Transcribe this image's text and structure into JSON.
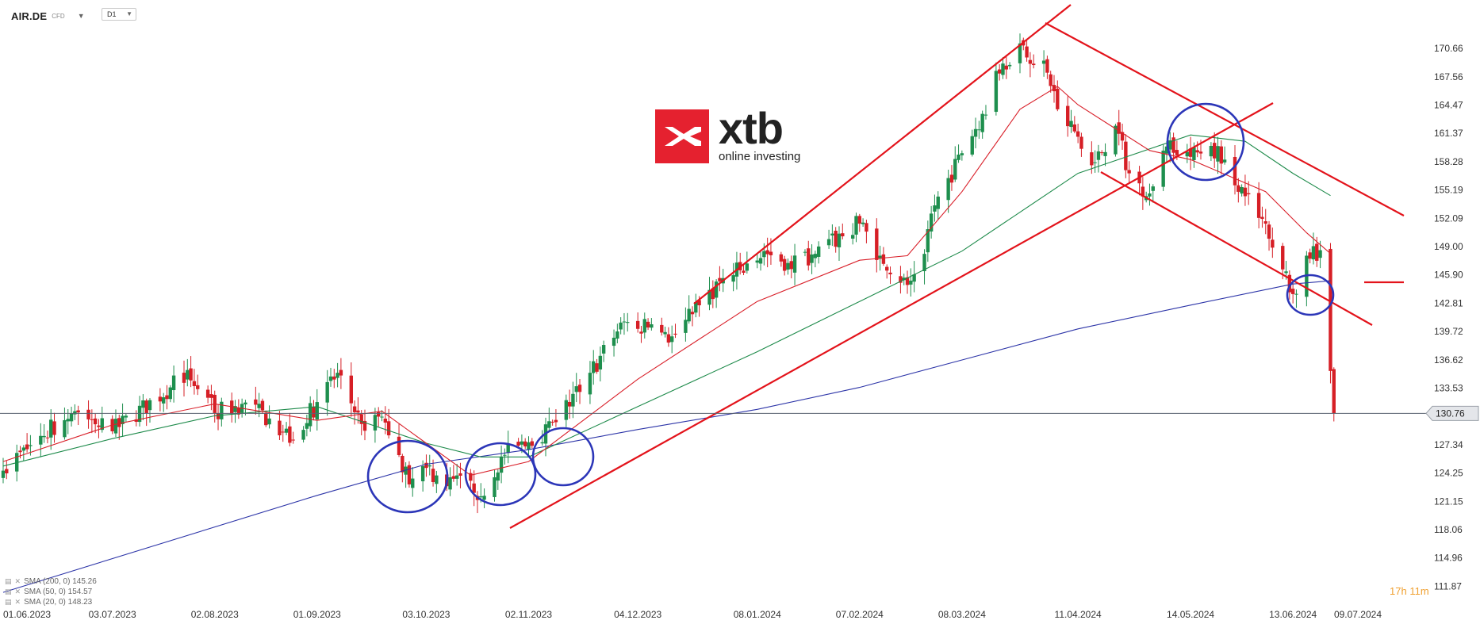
{
  "header": {
    "symbol": "AIR.DE",
    "symbol_type": "CFD",
    "timeframe": "D1"
  },
  "logo": {
    "brand": "xtb",
    "tagline": "online investing"
  },
  "indicators": [
    {
      "label": "SMA (200, 0) 145.26",
      "color": "#2d35a8"
    },
    {
      "label": "SMA (50, 0) 154.57",
      "color": "#1d8a4a"
    },
    {
      "label": "SMA (20, 0) 148.23",
      "color": "#d9202a"
    }
  ],
  "countdown": {
    "hours": "17",
    "h": "h",
    "minutes": "11",
    "m": "m"
  },
  "colors": {
    "up": "#1e8f4e",
    "down": "#d61f26",
    "sma200": "#2d35a8",
    "sma50": "#1d8a4a",
    "sma20": "#d9202a",
    "drawing_lines": "#e3131b",
    "drawing_circles": "#2c36b8",
    "price_line": "#5a6270"
  },
  "chart_data": {
    "type": "candlestick",
    "title": "",
    "xlabel": "",
    "ylabel": "",
    "ylim": [
      110.6,
      173.0
    ],
    "grid": false,
    "y_ticks": [
      170.66,
      167.56,
      164.47,
      161.37,
      158.28,
      155.19,
      152.09,
      149.0,
      145.9,
      142.81,
      139.72,
      136.62,
      133.53,
      130.76,
      127.34,
      124.25,
      121.15,
      118.06,
      114.96,
      111.87
    ],
    "x_ticks": [
      "01.06.2023",
      "03.07.2023",
      "02.08.2023",
      "01.09.2023",
      "03.10.2023",
      "02.11.2023",
      "04.12.2023",
      "08.01.2024",
      "07.02.2024",
      "08.03.2024",
      "11.04.2024",
      "14.05.2024",
      "13.06.2024",
      "09.07.2024"
    ],
    "current_price": 130.76,
    "anchors": [
      {
        "date": "01.06.2023",
        "close": 124.5
      },
      {
        "date": "12.06.2023",
        "close": 128.3
      },
      {
        "date": "22.06.2023",
        "close": 131.0
      },
      {
        "date": "03.07.2023",
        "close": 128.8
      },
      {
        "date": "20.07.2023",
        "close": 133.6
      },
      {
        "date": "25.07.2023",
        "close": 135.5
      },
      {
        "date": "02.08.2023",
        "close": 130.8
      },
      {
        "date": "10.08.2023",
        "close": 131.8
      },
      {
        "date": "18.08.2023",
        "close": 130.2
      },
      {
        "date": "25.08.2023",
        "close": 127.8
      },
      {
        "date": "01.09.2023",
        "close": 132.0
      },
      {
        "date": "07.09.2023",
        "close": 135.2
      },
      {
        "date": "14.09.2023",
        "close": 129.6
      },
      {
        "date": "20.09.2023",
        "close": 130.4
      },
      {
        "date": "25.09.2023",
        "close": 126.2
      },
      {
        "date": "28.09.2023",
        "close": 123.0
      },
      {
        "date": "03.10.2023",
        "close": 124.8
      },
      {
        "date": "09.10.2023",
        "close": 122.8
      },
      {
        "date": "16.10.2023",
        "close": 123.4
      },
      {
        "date": "19.10.2023",
        "close": 121.7
      },
      {
        "date": "25.10.2023",
        "close": 126.0
      },
      {
        "date": "02.11.2023",
        "close": 127.6
      },
      {
        "date": "10.11.2023",
        "close": 129.8
      },
      {
        "date": "20.11.2023",
        "close": 135.2
      },
      {
        "date": "30.11.2023",
        "close": 140.8
      },
      {
        "date": "04.12.2023",
        "close": 140.0
      },
      {
        "date": "08.12.2023",
        "close": 140.5
      },
      {
        "date": "13.12.2023",
        "close": 138.5
      },
      {
        "date": "20.12.2023",
        "close": 141.6
      },
      {
        "date": "28.12.2023",
        "close": 145.2
      },
      {
        "date": "03.01.2024",
        "close": 146.4
      },
      {
        "date": "10.01.2024",
        "close": 148.5
      },
      {
        "date": "17.01.2024",
        "close": 147.2
      },
      {
        "date": "25.01.2024",
        "close": 148.2
      },
      {
        "date": "07.02.2024",
        "close": 151.5
      },
      {
        "date": "13.02.2024",
        "close": 148.0
      },
      {
        "date": "21.02.2024",
        "close": 144.8
      },
      {
        "date": "26.02.2024",
        "close": 148.2
      },
      {
        "date": "29.02.2024",
        "close": 153.5
      },
      {
        "date": "08.03.2024",
        "close": 159.2
      },
      {
        "date": "14.03.2024",
        "close": 163.5
      },
      {
        "date": "20.03.2024",
        "close": 169.0
      },
      {
        "date": "25.03.2024",
        "close": 171.2
      },
      {
        "date": "02.04.2024",
        "close": 168.0
      },
      {
        "date": "05.04.2024",
        "close": 164.0
      },
      {
        "date": "11.04.2024",
        "close": 161.0
      },
      {
        "date": "16.04.2024",
        "close": 158.2
      },
      {
        "date": "22.04.2024",
        "close": 162.2
      },
      {
        "date": "26.04.2024",
        "close": 157.0
      },
      {
        "date": "02.05.2024",
        "close": 154.8
      },
      {
        "date": "08.05.2024",
        "close": 160.6
      },
      {
        "date": "14.05.2024",
        "close": 158.8
      },
      {
        "date": "20.05.2024",
        "close": 160.0
      },
      {
        "date": "24.05.2024",
        "close": 158.5
      },
      {
        "date": "30.05.2024",
        "close": 154.5
      },
      {
        "date": "05.06.2024",
        "close": 151.5
      },
      {
        "date": "10.06.2024",
        "close": 146.5
      },
      {
        "date": "13.06.2024",
        "close": 143.8
      },
      {
        "date": "17.06.2024",
        "close": 148.0
      },
      {
        "date": "21.06.2024",
        "close": 148.6
      },
      {
        "date": "24.06.2024",
        "close": 135.4
      },
      {
        "date": "25.06.2024",
        "close": 130.76
      }
    ],
    "series": [
      {
        "name": "SMA (200, 0)",
        "points": [
          [
            "01.06.2023",
            111.2
          ],
          [
            "01.09.2023",
            121.8
          ],
          [
            "03.10.2023",
            125.2
          ],
          [
            "02.11.2023",
            126.8
          ],
          [
            "04.12.2023",
            129.0
          ],
          [
            "08.01.2024",
            131.2
          ],
          [
            "07.02.2024",
            133.6
          ],
          [
            "08.03.2024",
            136.6
          ],
          [
            "11.04.2024",
            140.0
          ],
          [
            "14.05.2024",
            142.6
          ],
          [
            "13.06.2024",
            144.9
          ],
          [
            "24.06.2024",
            145.26
          ]
        ]
      },
      {
        "name": "SMA (50, 0)",
        "points": [
          [
            "01.06.2023",
            125.0
          ],
          [
            "03.07.2023",
            128.0
          ],
          [
            "02.08.2023",
            130.5
          ],
          [
            "01.09.2023",
            131.5
          ],
          [
            "03.10.2023",
            127.5
          ],
          [
            "19.10.2023",
            126.0
          ],
          [
            "02.11.2023",
            126.0
          ],
          [
            "04.12.2023",
            131.5
          ],
          [
            "08.01.2024",
            137.5
          ],
          [
            "07.02.2024",
            143.0
          ],
          [
            "08.03.2024",
            148.5
          ],
          [
            "11.04.2024",
            157.0
          ],
          [
            "14.05.2024",
            161.2
          ],
          [
            "30.05.2024",
            160.5
          ],
          [
            "13.06.2024",
            157.0
          ],
          [
            "24.06.2024",
            154.57
          ]
        ]
      },
      {
        "name": "SMA (20, 0)",
        "points": [
          [
            "01.06.2023",
            125.5
          ],
          [
            "03.07.2023",
            129.5
          ],
          [
            "02.08.2023",
            131.8
          ],
          [
            "01.09.2023",
            130.0
          ],
          [
            "20.09.2023",
            131.0
          ],
          [
            "03.10.2023",
            127.5
          ],
          [
            "16.10.2023",
            124.0
          ],
          [
            "02.11.2023",
            125.5
          ],
          [
            "04.12.2023",
            134.5
          ],
          [
            "08.01.2024",
            143.0
          ],
          [
            "07.02.2024",
            147.5
          ],
          [
            "21.02.2024",
            148.0
          ],
          [
            "08.03.2024",
            155.0
          ],
          [
            "25.03.2024",
            164.0
          ],
          [
            "05.04.2024",
            166.5
          ],
          [
            "11.04.2024",
            164.5
          ],
          [
            "02.05.2024",
            159.5
          ],
          [
            "14.05.2024",
            158.5
          ],
          [
            "05.06.2024",
            155.0
          ],
          [
            "17.06.2024",
            150.5
          ],
          [
            "24.06.2024",
            148.23
          ]
        ]
      }
    ]
  }
}
